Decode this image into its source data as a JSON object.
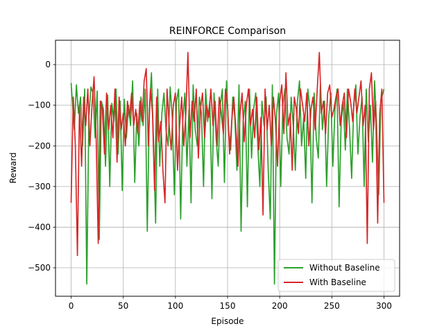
{
  "chart_data": {
    "type": "line",
    "title": "REINFORCE Comparison",
    "xlabel": "Episode",
    "ylabel": "Reward",
    "xlim": [
      -15,
      315
    ],
    "ylim": [
      -570,
      60
    ],
    "xticks": [
      0,
      50,
      100,
      150,
      200,
      250,
      300
    ],
    "yticks": [
      0,
      -100,
      -200,
      -300,
      -400,
      -500
    ],
    "xtick_labels": [
      "0",
      "50",
      "100",
      "150",
      "200",
      "250",
      "300"
    ],
    "ytick_labels": [
      "0",
      "−100",
      "−200",
      "−300",
      "−400",
      "−500"
    ],
    "grid": true,
    "legend": {
      "placement": "lower-right"
    },
    "colors": {
      "Without Baseline": "#2ca02c",
      "With Baseline": "#d62728"
    },
    "series": [
      {
        "name": "Without Baseline",
        "color": "#2ca02c",
        "x": [
          0,
          3,
          5,
          7,
          9,
          11,
          13,
          15,
          17,
          19,
          21,
          23,
          25,
          27,
          29,
          31,
          33,
          35,
          37,
          39,
          41,
          43,
          45,
          47,
          49,
          51,
          53,
          55,
          57,
          59,
          61,
          63,
          65,
          67,
          69,
          71,
          73,
          75,
          77,
          79,
          81,
          83,
          85,
          87,
          89,
          91,
          93,
          95,
          97,
          99,
          101,
          103,
          105,
          107,
          109,
          111,
          113,
          115,
          117,
          119,
          121,
          123,
          125,
          127,
          129,
          131,
          133,
          135,
          137,
          139,
          141,
          143,
          145,
          147,
          149,
          151,
          153,
          155,
          157,
          159,
          161,
          163,
          165,
          167,
          169,
          171,
          173,
          175,
          177,
          179,
          181,
          183,
          185,
          187,
          189,
          191,
          193,
          195,
          197,
          199,
          201,
          203,
          205,
          207,
          209,
          211,
          213,
          215,
          217,
          219,
          221,
          223,
          225,
          227,
          229,
          231,
          233,
          235,
          237,
          239,
          241,
          243,
          245,
          247,
          249,
          251,
          253,
          255,
          257,
          259,
          261,
          263,
          265,
          267,
          269,
          271,
          273,
          275,
          277,
          279,
          281,
          283,
          285,
          287,
          289,
          291,
          293,
          295,
          297,
          300
        ],
        "values": [
          -45,
          -160,
          -50,
          -120,
          -80,
          -200,
          -60,
          -540,
          -130,
          -55,
          -70,
          -180,
          -65,
          -430,
          -90,
          -110,
          -250,
          -75,
          -300,
          -95,
          -140,
          -60,
          -220,
          -90,
          -310,
          -85,
          -180,
          -100,
          -150,
          -40,
          -290,
          -120,
          -200,
          -80,
          -150,
          -60,
          -410,
          -110,
          -20,
          -190,
          -390,
          -60,
          -250,
          -120,
          -70,
          -160,
          -200,
          -55,
          -130,
          -320,
          -90,
          -60,
          -380,
          -140,
          -70,
          -250,
          -110,
          -340,
          -50,
          -160,
          -200,
          -80,
          -120,
          -300,
          -60,
          -140,
          -90,
          -330,
          -70,
          -180,
          -250,
          -100,
          -60,
          -290,
          -40,
          -160,
          -210,
          -80,
          -130,
          -260,
          -50,
          -410,
          -140,
          -90,
          -350,
          -60,
          -230,
          -110,
          -70,
          -200,
          -300,
          -90,
          -150,
          -80,
          -260,
          -380,
          -50,
          -540,
          -120,
          -70,
          -300,
          -100,
          -60,
          -180,
          -220,
          -80,
          -150,
          -260,
          -90,
          -40,
          -200,
          -130,
          -280,
          -60,
          -110,
          -340,
          -70,
          -180,
          -230,
          -50,
          -160,
          -90,
          -300,
          -130,
          -70,
          -250,
          -110,
          -60,
          -350,
          -140,
          -90,
          -210,
          -60,
          -160,
          -280,
          -100,
          -50,
          -220,
          -130,
          -80,
          -300,
          -60,
          -190,
          -100,
          -240,
          -40,
          -150,
          -320,
          -90,
          -60
        ]
      },
      {
        "name": "With Baseline",
        "color": "#d62728",
        "x": [
          0,
          2,
          4,
          6,
          8,
          10,
          12,
          14,
          16,
          18,
          20,
          22,
          24,
          26,
          28,
          30,
          32,
          34,
          36,
          38,
          40,
          42,
          44,
          46,
          48,
          50,
          52,
          54,
          56,
          58,
          60,
          62,
          64,
          66,
          68,
          70,
          72,
          74,
          76,
          78,
          80,
          82,
          84,
          86,
          88,
          90,
          92,
          94,
          96,
          98,
          100,
          102,
          104,
          106,
          108,
          110,
          112,
          114,
          116,
          118,
          120,
          122,
          124,
          126,
          128,
          130,
          132,
          134,
          136,
          138,
          140,
          142,
          144,
          146,
          148,
          150,
          152,
          154,
          156,
          158,
          160,
          162,
          164,
          166,
          168,
          170,
          172,
          174,
          176,
          178,
          180,
          182,
          184,
          186,
          188,
          190,
          192,
          194,
          196,
          198,
          200,
          202,
          204,
          206,
          208,
          210,
          212,
          214,
          216,
          218,
          220,
          222,
          224,
          226,
          228,
          230,
          232,
          234,
          236,
          238,
          240,
          242,
          244,
          246,
          248,
          250,
          252,
          254,
          256,
          258,
          260,
          262,
          264,
          266,
          268,
          270,
          272,
          274,
          276,
          278,
          280,
          282,
          284,
          286,
          288,
          290,
          292,
          294,
          296,
          298,
          300
        ],
        "values": [
          -340,
          -80,
          -200,
          -470,
          -100,
          -250,
          -80,
          -150,
          -60,
          -200,
          -100,
          -30,
          -180,
          -440,
          -90,
          -110,
          -220,
          -70,
          -160,
          -100,
          -180,
          -60,
          -240,
          -80,
          -160,
          -120,
          -200,
          -90,
          -130,
          -70,
          -150,
          -110,
          -170,
          -90,
          -140,
          -40,
          -10,
          -200,
          -60,
          -120,
          -310,
          -80,
          -190,
          -140,
          -260,
          -340,
          -60,
          -150,
          -210,
          -100,
          -70,
          -260,
          -150,
          -80,
          -200,
          -120,
          30,
          -180,
          -90,
          -140,
          -60,
          -230,
          -110,
          -70,
          -180,
          -100,
          -130,
          -60,
          -150,
          -90,
          -200,
          -80,
          -120,
          -170,
          -60,
          -100,
          -220,
          -140,
          -80,
          -160,
          -250,
          -120,
          -70,
          -190,
          -100,
          -60,
          -150,
          -110,
          -180,
          -80,
          -210,
          -130,
          -370,
          -60,
          -160,
          -100,
          -200,
          -80,
          -140,
          -250,
          -90,
          -50,
          -170,
          -20,
          -150,
          -120,
          -260,
          -80,
          -110,
          -170,
          -60,
          -100,
          -140,
          -70,
          -200,
          -110,
          -80,
          -160,
          -60,
          30,
          -120,
          -90,
          -170,
          -70,
          -50,
          -130,
          -110,
          -80,
          -60,
          -150,
          -100,
          -70,
          -180,
          -60,
          -90,
          -140,
          -60,
          -120,
          -80,
          -40,
          -150,
          -100,
          -440,
          -60,
          -20,
          -160,
          -90,
          -390,
          -120,
          -60,
          -340
        ]
      }
    ]
  }
}
